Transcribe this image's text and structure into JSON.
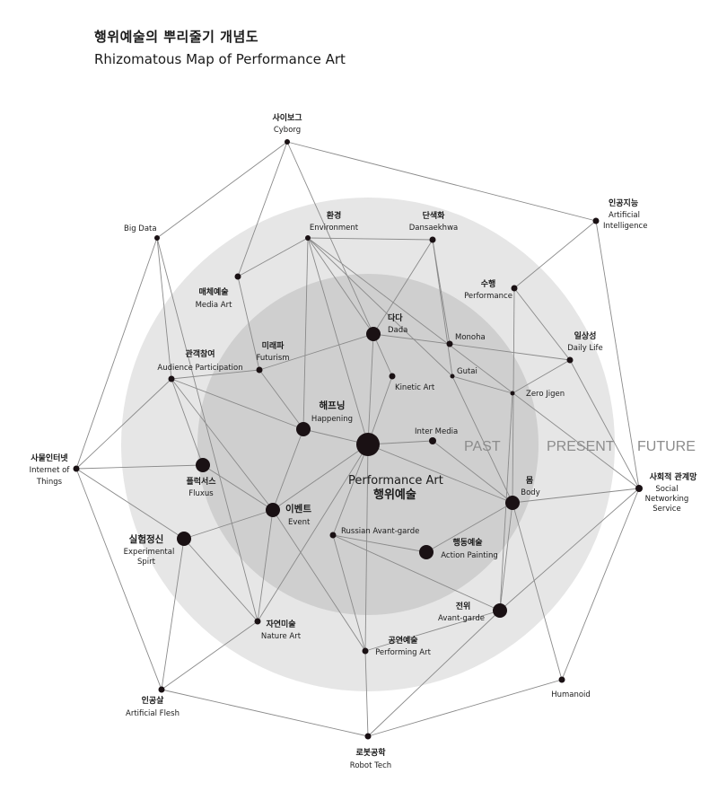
{
  "title": {
    "ko": "행위예술의 뿌리줄기 개념도",
    "en": "Rhizomatous Map of Performance Art"
  },
  "eras": [
    "PAST",
    "PRESENT",
    "FUTURE"
  ],
  "center": {
    "ko": "행위예술",
    "en": "Performance Art"
  },
  "nodes": {
    "cyborg": {
      "ko": "사이보그",
      "en": "Cyborg"
    },
    "ai": {
      "ko": "인공지능",
      "en1": "Artificial",
      "en2": "Intelligence"
    },
    "bigdata": {
      "en": "Big Data"
    },
    "environment": {
      "ko": "환경",
      "en": "Environment"
    },
    "dansaekhwa": {
      "ko": "단색화",
      "en": "Dansaekhwa"
    },
    "performance": {
      "ko": "수행",
      "en": "Performance"
    },
    "mediaart": {
      "ko": "매체예술",
      "en": "Media Art"
    },
    "dada": {
      "ko": "다다",
      "en": "Dada"
    },
    "monoha": {
      "en": "Monoha"
    },
    "futurism": {
      "ko": "미래파",
      "en": "Futurism"
    },
    "dailylife": {
      "ko": "일상성",
      "en": "Daily Life"
    },
    "audience": {
      "ko": "관객참여",
      "en": "Audience Participation"
    },
    "gutai": {
      "en": "Gutai"
    },
    "kinetic": {
      "en": "Kinetic Art"
    },
    "zerojigen": {
      "en": "Zero Jigen"
    },
    "happening": {
      "ko": "해프닝",
      "en": "Happening"
    },
    "intermedia": {
      "en": "Inter Media"
    },
    "iot": {
      "ko": "사물인터넷",
      "en1": "Internet of",
      "en2": "Things"
    },
    "fluxus": {
      "ko": "플럭서스",
      "en": "Fluxus"
    },
    "sns": {
      "ko": "사회적 관계망",
      "en1": "Social",
      "en2": "Networking",
      "en3": "Service"
    },
    "body": {
      "ko": "몸",
      "en": "Body"
    },
    "event": {
      "ko": "이벤트",
      "en": "Event"
    },
    "experimental": {
      "ko": "실험정신",
      "en1": "Experimental",
      "en2": "Spirt"
    },
    "russian": {
      "en": "Russian Avant-garde"
    },
    "action": {
      "ko": "행동예술",
      "en": "Action Painting"
    },
    "avantgarde": {
      "ko": "전위",
      "en": "Avant-garde"
    },
    "nature": {
      "ko": "자연미술",
      "en": "Nature Art"
    },
    "performing": {
      "ko": "공연예술",
      "en": "Performing Art"
    },
    "flesh": {
      "ko": "인공살",
      "en": "Artificial Flesh"
    },
    "humanoid": {
      "en": "Humanoid"
    },
    "robot": {
      "ko": "로봇공학",
      "en": "Robot Tech"
    }
  },
  "colors": {
    "outer_circle": "#e6e6e6",
    "inner_circle": "#cfcfcf",
    "node": "#1a1114",
    "line": "#8a8a8a",
    "era_text": "#8c8c8c"
  }
}
